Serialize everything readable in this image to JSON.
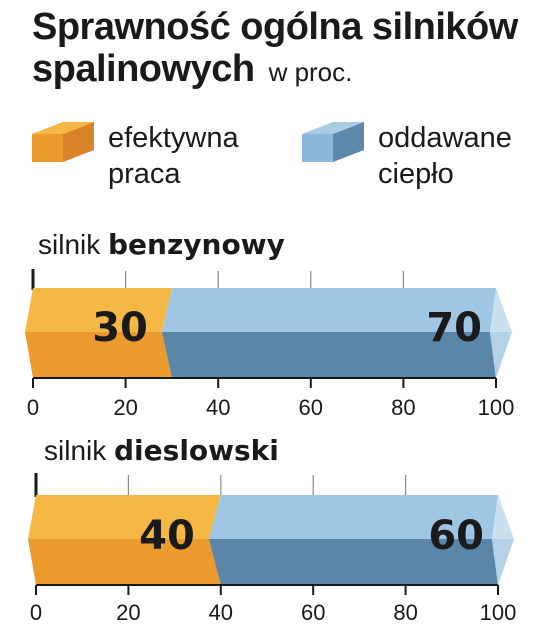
{
  "title": {
    "main": "Sprawność ogólna  silników spalinowych",
    "unit": "w proc."
  },
  "legend": [
    {
      "label": "efektywna praca",
      "top_color": "#f5b845",
      "front_color": "#eb9a2e",
      "side_color": "#d9842a"
    },
    {
      "label": "oddawane ciepło",
      "top_color": "#a9cbe3",
      "front_color": "#8db7d8",
      "side_color": "#5c88aa"
    }
  ],
  "chart_data": [
    {
      "type": "bar",
      "orientation": "horizontal",
      "stacked": true,
      "title_prefix": "silnik ",
      "title_bold": "benzynowy",
      "xlim": [
        0,
        100
      ],
      "ticks": [
        "0",
        "20",
        "40",
        "60",
        "80",
        "100"
      ],
      "series": [
        {
          "name": "efektywna praca",
          "value": 30,
          "label": "30"
        },
        {
          "name": "oddawane ciepło",
          "value": 70,
          "label": "70"
        }
      ]
    },
    {
      "type": "bar",
      "orientation": "horizontal",
      "stacked": true,
      "title_prefix": "silnik ",
      "title_bold": "dieslowski",
      "xlim": [
        0,
        100
      ],
      "ticks": [
        "0",
        "20",
        "40",
        "60",
        "80",
        "100"
      ],
      "series": [
        {
          "name": "efektywna praca",
          "value": 40,
          "label": "40"
        },
        {
          "name": "oddawane ciepło",
          "value": 60,
          "label": "60"
        }
      ]
    }
  ],
  "colors": {
    "work_top": "#f5b845",
    "work_bottom": "#eb9a2e",
    "heat_top": "#9fc6e2",
    "heat_bottom": "#5a86a8",
    "arrow_top": "#c9e0ef",
    "arrow_bottom": "#b3d2e7",
    "axis": "#1a1a1a",
    "grid": "#8a8a8a"
  }
}
